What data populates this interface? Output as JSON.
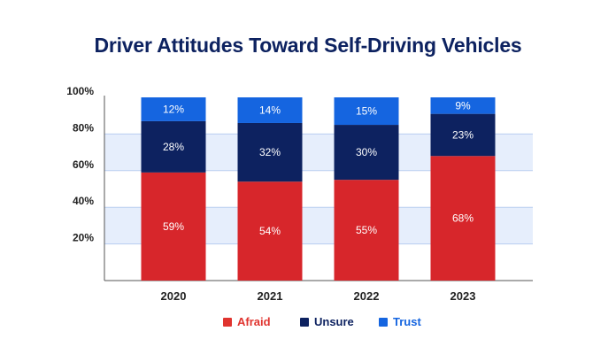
{
  "chart_data": {
    "type": "bar",
    "stacked": true,
    "title": "Driver Attitudes Toward Self-Driving Vehicles",
    "categories": [
      "2020",
      "2021",
      "2022",
      "2023"
    ],
    "series": [
      {
        "name": "Afraid",
        "color": "#d7262b",
        "values": [
          59,
          54,
          55,
          68
        ],
        "labels": [
          "59%",
          "54%",
          "55%",
          "68%"
        ]
      },
      {
        "name": "Unsure",
        "color": "#0d2260",
        "values": [
          28,
          32,
          30,
          23
        ],
        "labels": [
          "28%",
          "32%",
          "30%",
          "23%"
        ]
      },
      {
        "name": "Trust",
        "color": "#1565e0",
        "values": [
          12,
          14,
          15,
          9
        ],
        "labels": [
          "12%",
          "14%",
          "15%",
          "9%"
        ]
      }
    ],
    "ylim": [
      0,
      100
    ],
    "yticks": [
      20,
      40,
      60,
      80,
      100
    ],
    "ytick_labels": [
      "20%",
      "40%",
      "60%",
      "80%",
      "100%"
    ],
    "legend_position": "bottom",
    "grid": "alternating-bands"
  },
  "legend_colors": {
    "Afraid": "#e0342f",
    "Unsure": "#0d2260",
    "Trust": "#1565e0"
  }
}
